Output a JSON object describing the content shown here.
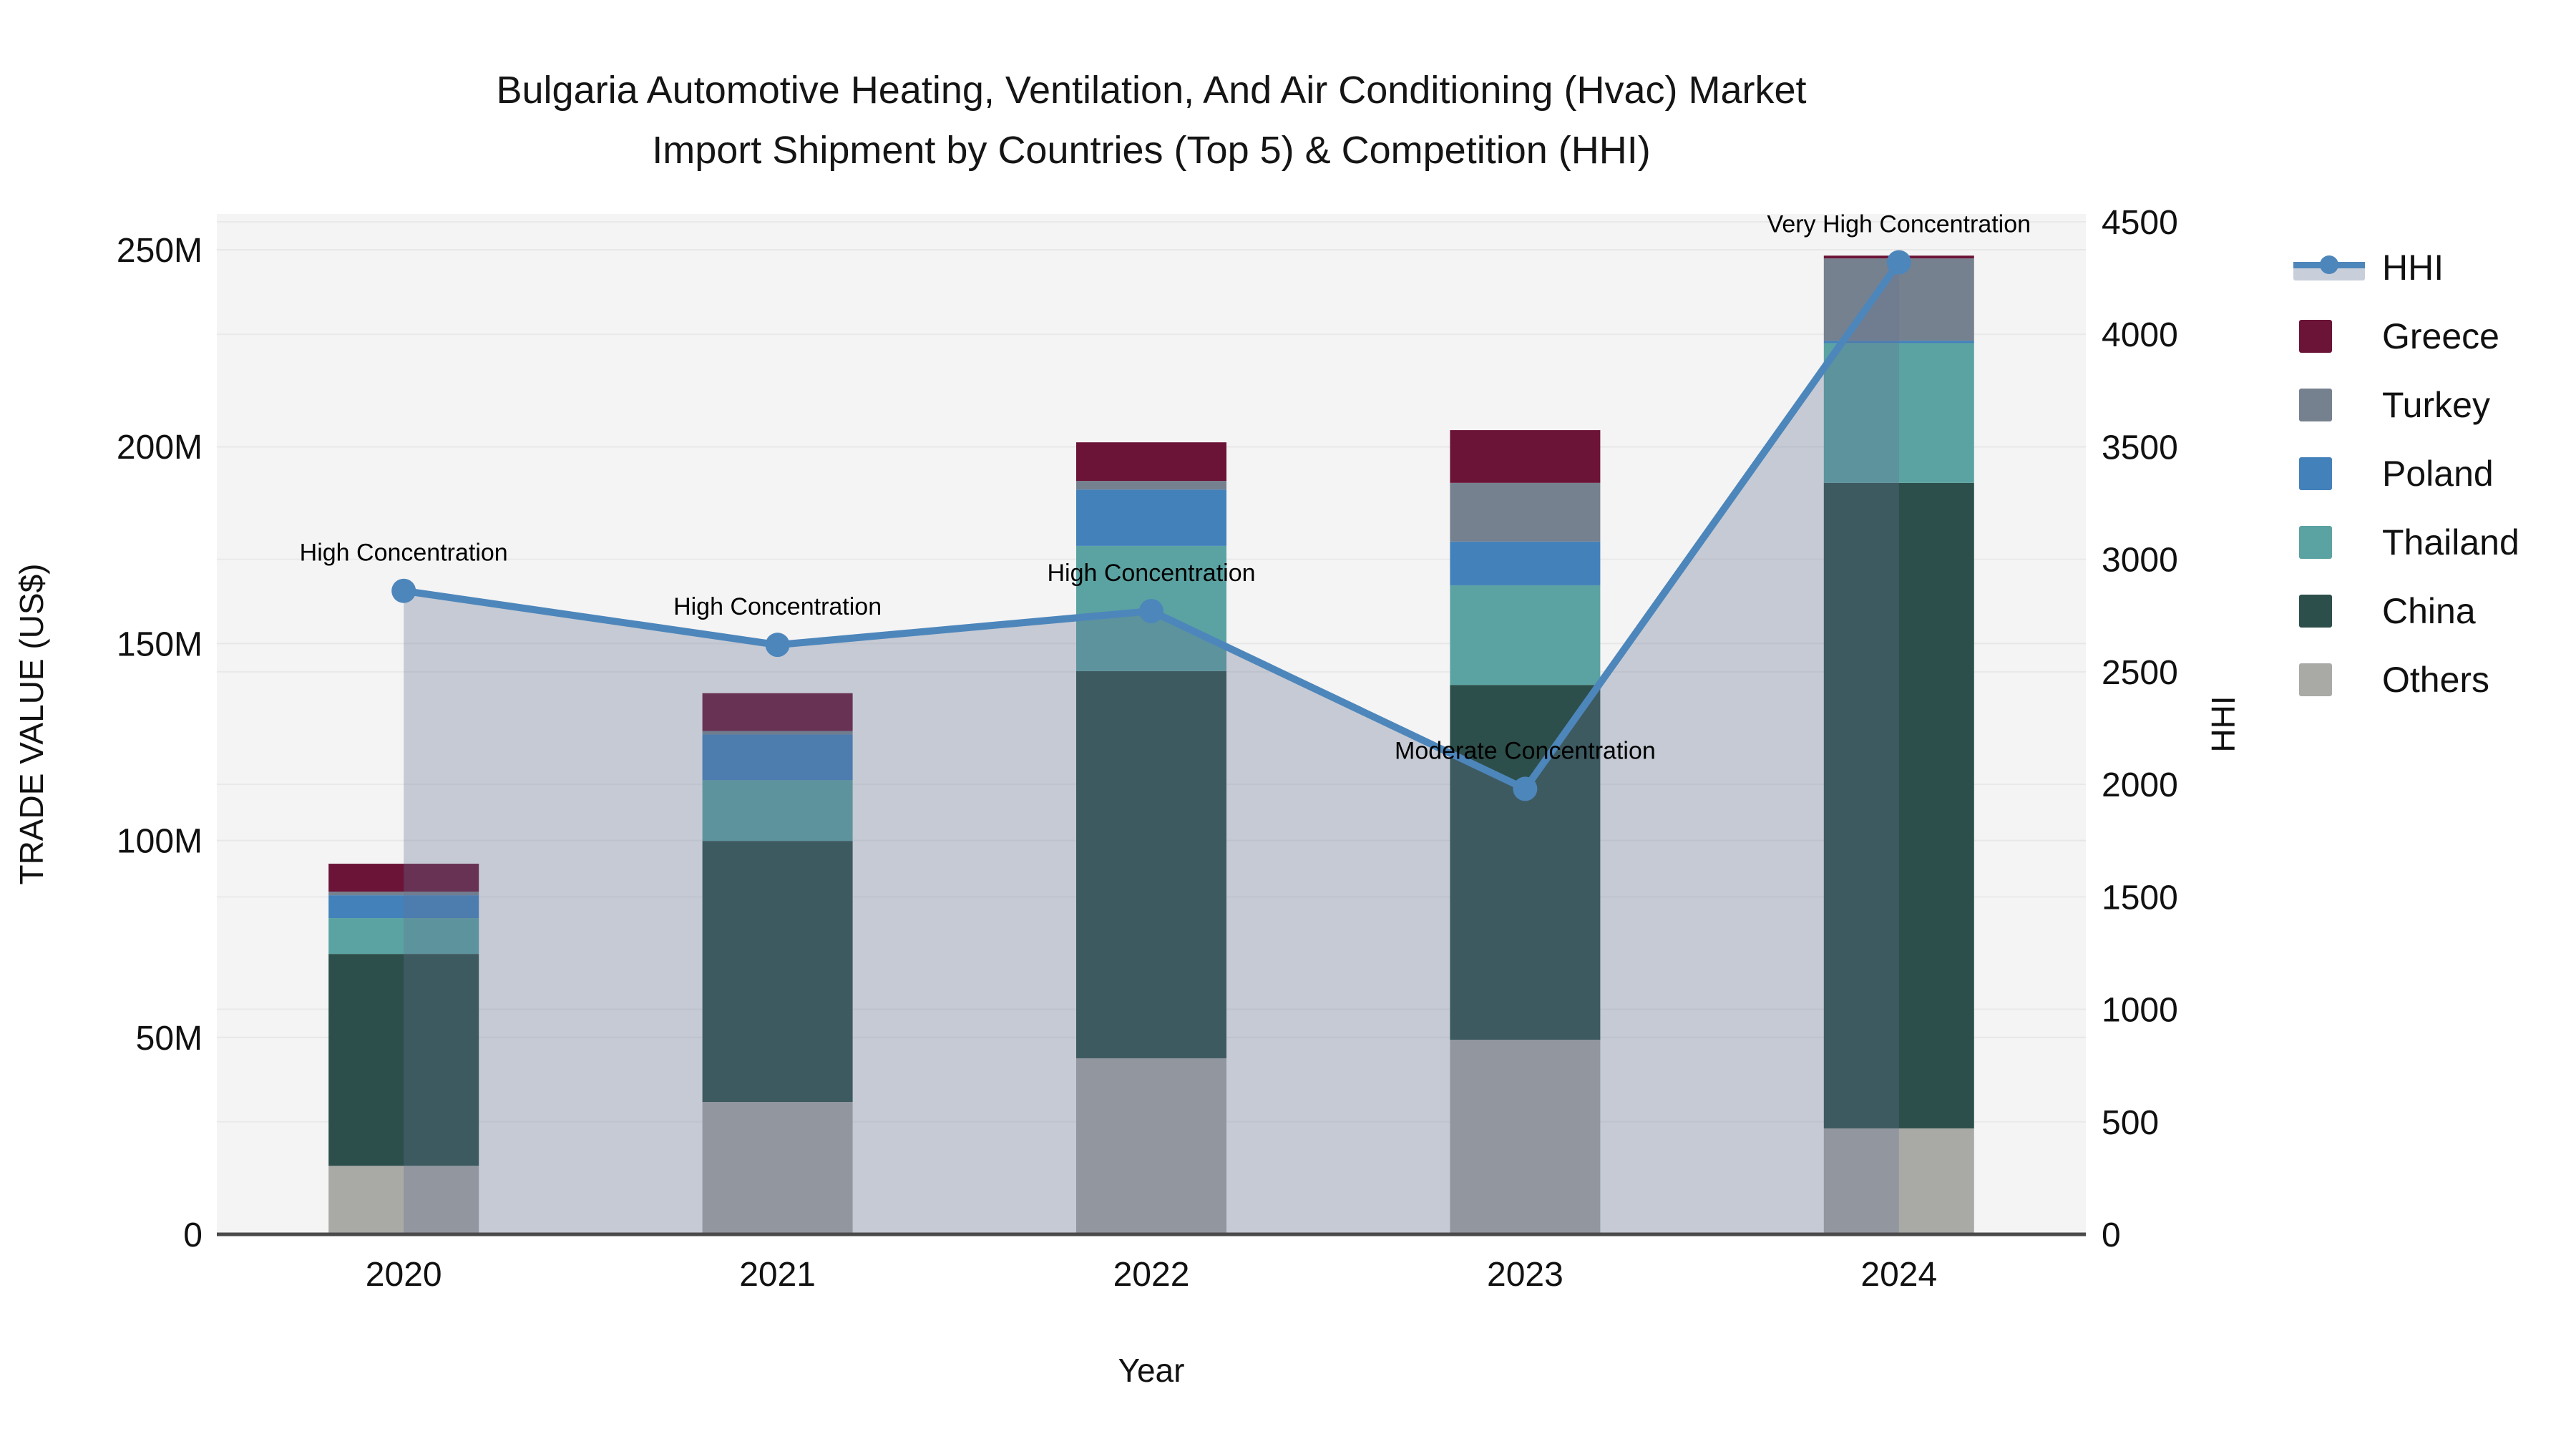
{
  "title": {
    "line1": "Bulgaria Automotive Heating, Ventilation, And Air Conditioning (Hvac) Market",
    "line2": "Import Shipment by Countries (Top 5) & Competition (HHI)"
  },
  "left_axis": {
    "title": "TRADE VALUE (US$)",
    "ticks": [
      "0",
      "50M",
      "100M",
      "150M",
      "200M",
      "250M"
    ],
    "tick_values": [
      0,
      50,
      100,
      150,
      200,
      250
    ],
    "unit": "M"
  },
  "right_axis": {
    "title": "HHI",
    "ticks": [
      "0",
      "500",
      "1000",
      "1500",
      "2000",
      "2500",
      "3000",
      "3500",
      "4000",
      "4500"
    ],
    "tick_values": [
      0,
      500,
      1000,
      1500,
      2000,
      2500,
      3000,
      3500,
      4000,
      4500
    ]
  },
  "x_axis": {
    "title": "Year",
    "categories": [
      "2020",
      "2021",
      "2022",
      "2023",
      "2024"
    ]
  },
  "legend": [
    {
      "label": "HHI",
      "type": "line",
      "color": "#4d86bb",
      "band_color": "#c9cfda"
    },
    {
      "label": "Greece",
      "type": "box",
      "color": "#6b1437"
    },
    {
      "label": "Turkey",
      "type": "box",
      "color": "#76818f"
    },
    {
      "label": "Poland",
      "type": "box",
      "color": "#4381bb"
    },
    {
      "label": "Thailand",
      "type": "box",
      "color": "#5ba3a2"
    },
    {
      "label": "China",
      "type": "box",
      "color": "#2d4f4b"
    },
    {
      "label": "Others",
      "type": "box",
      "color": "#a9a9a6"
    }
  ],
  "chart_data": {
    "type": "bar+line",
    "title": "Bulgaria Automotive Heating, Ventilation, And Air Conditioning (Hvac) Market Import Shipment by Countries (Top 5) & Competition (HHI)",
    "categories": [
      "2020",
      "2021",
      "2022",
      "2023",
      "2024"
    ],
    "bar_unit": "million US$",
    "stack_order_bottom_to_top": [
      "Others",
      "China",
      "Thailand",
      "Poland",
      "Turkey",
      "Greece"
    ],
    "series": [
      {
        "name": "Others",
        "color": "#a9a9a6",
        "values": [
          17.4,
          33.6,
          44.7,
          49.4,
          26.9
        ]
      },
      {
        "name": "China",
        "color": "#2d4f4b",
        "values": [
          53.8,
          66.3,
          98.3,
          90.1,
          163.9
        ]
      },
      {
        "name": "Thailand",
        "color": "#5ba3a2",
        "values": [
          9.1,
          15.4,
          31.8,
          25.3,
          35.5
        ]
      },
      {
        "name": "Poland",
        "color": "#4381bb",
        "values": [
          5.8,
          11.6,
          14.3,
          11.1,
          0.6
        ]
      },
      {
        "name": "Turkey",
        "color": "#76818f",
        "values": [
          0.9,
          0.9,
          2.2,
          14.9,
          20.9
        ]
      },
      {
        "name": "Greece",
        "color": "#6b1437",
        "values": [
          7.1,
          9.6,
          9.8,
          13.4,
          0.7
        ]
      }
    ],
    "bar_totals": [
      94.1,
      137.4,
      201.1,
      204.2,
      248.5
    ],
    "line_series": {
      "name": "HHI",
      "axis": "right",
      "color": "#4d86bb",
      "area_color": "rgba(100,115,145,0.32)",
      "values": [
        2860,
        2620,
        2770,
        1980,
        4320
      ]
    },
    "annotations": [
      {
        "x": "2020",
        "text": "High Concentration"
      },
      {
        "x": "2021",
        "text": "High Concentration"
      },
      {
        "x": "2022",
        "text": "High Concentration"
      },
      {
        "x": "2023",
        "text": "Moderate Concentration"
      },
      {
        "x": "2024",
        "text": "Very High Concentration"
      }
    ],
    "ylim_left": [
      0,
      259
    ],
    "ylim_right": [
      0,
      4500
    ],
    "grid": true,
    "legend_position": "right",
    "plot_background": "#f4f4f4"
  }
}
